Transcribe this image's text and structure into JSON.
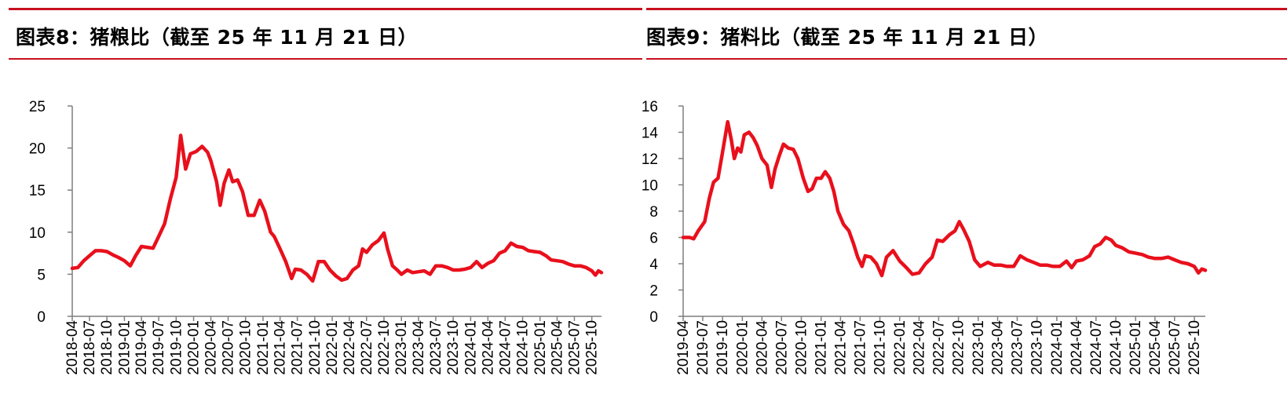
{
  "chart_data": [
    {
      "type": "line",
      "title": "图表8：猪粮比（截至 25 年 11 月 21 日）",
      "xlabel": "",
      "ylabel": "",
      "ylim": [
        0,
        25
      ],
      "yticks": [
        0,
        5,
        10,
        15,
        20,
        25
      ],
      "grid": false,
      "legend": "none",
      "color": "#e8101c",
      "x_range": [
        "2018-04-01",
        "2025-11-21"
      ],
      "xticks": [
        "2018-04",
        "2018-07",
        "2018-10",
        "2019-01",
        "2019-04",
        "2019-07",
        "2019-10",
        "2020-01",
        "2020-04",
        "2020-07",
        "2020-10",
        "2021-01",
        "2021-04",
        "2021-07",
        "2021-10",
        "2022-01",
        "2022-04",
        "2022-07",
        "2022-10",
        "2023-01",
        "2023-04",
        "2023-07",
        "2023-10",
        "2024-01",
        "2024-04",
        "2024-07",
        "2024-10",
        "2025-01",
        "2025-04",
        "2025-07",
        "2025-10"
      ],
      "series": [
        {
          "name": "",
          "points": [
            [
              "2018-04-01",
              5.7
            ],
            [
              "2018-05-01",
              5.8
            ],
            [
              "2018-06-01",
              6.6
            ],
            [
              "2018-07-01",
              7.2
            ],
            [
              "2018-08-01",
              7.8
            ],
            [
              "2018-09-01",
              7.8
            ],
            [
              "2018-10-01",
              7.7
            ],
            [
              "2018-11-01",
              7.3
            ],
            [
              "2018-12-01",
              7.0
            ],
            [
              "2019-01-01",
              6.6
            ],
            [
              "2019-02-01",
              6.0
            ],
            [
              "2019-03-01",
              7.2
            ],
            [
              "2019-04-01",
              8.3
            ],
            [
              "2019-05-01",
              8.2
            ],
            [
              "2019-06-01",
              8.1
            ],
            [
              "2019-07-01",
              9.5
            ],
            [
              "2019-08-01",
              11.0
            ],
            [
              "2019-09-01",
              14.0
            ],
            [
              "2019-10-01",
              16.5
            ],
            [
              "2019-10-25",
              21.5
            ],
            [
              "2019-11-20",
              17.5
            ],
            [
              "2019-12-15",
              19.3
            ],
            [
              "2020-01-15",
              19.6
            ],
            [
              "2020-02-15",
              20.2
            ],
            [
              "2020-03-15",
              19.5
            ],
            [
              "2020-04-01",
              18.5
            ],
            [
              "2020-05-01",
              16.0
            ],
            [
              "2020-05-20",
              13.2
            ],
            [
              "2020-06-10",
              15.8
            ],
            [
              "2020-07-05",
              17.4
            ],
            [
              "2020-07-25",
              16.0
            ],
            [
              "2020-08-20",
              16.2
            ],
            [
              "2020-09-15",
              14.8
            ],
            [
              "2020-10-15",
              12.0
            ],
            [
              "2020-11-15",
              12.0
            ],
            [
              "2020-12-15",
              13.8
            ],
            [
              "2021-01-10",
              12.5
            ],
            [
              "2021-02-10",
              10.0
            ],
            [
              "2021-03-01",
              9.5
            ],
            [
              "2021-04-01",
              8.0
            ],
            [
              "2021-05-01",
              6.5
            ],
            [
              "2021-06-01",
              4.5
            ],
            [
              "2021-06-20",
              5.6
            ],
            [
              "2021-07-20",
              5.5
            ],
            [
              "2021-08-20",
              5.0
            ],
            [
              "2021-09-20",
              4.2
            ],
            [
              "2021-10-20",
              6.5
            ],
            [
              "2021-11-20",
              6.5
            ],
            [
              "2021-12-20",
              5.5
            ],
            [
              "2022-01-20",
              4.8
            ],
            [
              "2022-02-20",
              4.3
            ],
            [
              "2022-03-20",
              4.5
            ],
            [
              "2022-04-20",
              5.5
            ],
            [
              "2022-05-20",
              6.0
            ],
            [
              "2022-06-10",
              8.0
            ],
            [
              "2022-07-01",
              7.6
            ],
            [
              "2022-08-01",
              8.5
            ],
            [
              "2022-09-01",
              9.0
            ],
            [
              "2022-10-01",
              9.9
            ],
            [
              "2022-10-20",
              8.0
            ],
            [
              "2022-11-15",
              6.0
            ],
            [
              "2022-12-10",
              5.5
            ],
            [
              "2023-01-01",
              5.0
            ],
            [
              "2023-02-01",
              5.5
            ],
            [
              "2023-03-01",
              5.2
            ],
            [
              "2023-04-01",
              5.3
            ],
            [
              "2023-05-01",
              5.4
            ],
            [
              "2023-06-01",
              5.0
            ],
            [
              "2023-07-01",
              6.0
            ],
            [
              "2023-08-01",
              6.0
            ],
            [
              "2023-09-01",
              5.8
            ],
            [
              "2023-10-01",
              5.5
            ],
            [
              "2023-11-01",
              5.5
            ],
            [
              "2023-12-01",
              5.6
            ],
            [
              "2024-01-01",
              5.8
            ],
            [
              "2024-02-01",
              6.5
            ],
            [
              "2024-03-01",
              5.8
            ],
            [
              "2024-04-01",
              6.3
            ],
            [
              "2024-05-01",
              6.6
            ],
            [
              "2024-06-01",
              7.5
            ],
            [
              "2024-07-01",
              7.8
            ],
            [
              "2024-08-01",
              8.7
            ],
            [
              "2024-09-01",
              8.3
            ],
            [
              "2024-10-01",
              8.2
            ],
            [
              "2024-11-01",
              7.8
            ],
            [
              "2024-12-01",
              7.7
            ],
            [
              "2025-01-01",
              7.6
            ],
            [
              "2025-02-01",
              7.2
            ],
            [
              "2025-03-01",
              6.7
            ],
            [
              "2025-04-01",
              6.6
            ],
            [
              "2025-05-01",
              6.5
            ],
            [
              "2025-06-01",
              6.2
            ],
            [
              "2025-07-01",
              6.0
            ],
            [
              "2025-08-01",
              6.0
            ],
            [
              "2025-09-01",
              5.8
            ],
            [
              "2025-10-01",
              5.4
            ],
            [
              "2025-10-20",
              4.9
            ],
            [
              "2025-11-05",
              5.4
            ],
            [
              "2025-11-21",
              5.2
            ]
          ]
        }
      ]
    },
    {
      "type": "line",
      "title": "图表9：猪料比（截至 25 年 11 月 21 日）",
      "xlabel": "",
      "ylabel": "",
      "ylim": [
        0,
        16
      ],
      "yticks": [
        0,
        2,
        4,
        6,
        8,
        10,
        12,
        14,
        16
      ],
      "grid": false,
      "legend": "none",
      "color": "#e8101c",
      "x_range": [
        "2019-04-01",
        "2025-11-21"
      ],
      "xticks": [
        "2019-04",
        "2019-07",
        "2019-10",
        "2020-01",
        "2020-04",
        "2020-07",
        "2020-10",
        "2021-01",
        "2021-04",
        "2021-07",
        "2021-10",
        "2022-01",
        "2022-04",
        "2022-07",
        "2022-10",
        "2023-01",
        "2023-04",
        "2023-07",
        "2023-10",
        "2024-01",
        "2024-04",
        "2024-07",
        "2024-10",
        "2025-01",
        "2025-04",
        "2025-07",
        "2025-10"
      ],
      "series": [
        {
          "name": "",
          "points": [
            [
              "2019-04-01",
              6.0
            ],
            [
              "2019-05-01",
              6.0
            ],
            [
              "2019-05-20",
              5.9
            ],
            [
              "2019-06-10",
              6.5
            ],
            [
              "2019-07-10",
              7.2
            ],
            [
              "2019-08-01",
              9.0
            ],
            [
              "2019-08-20",
              10.2
            ],
            [
              "2019-09-10",
              10.5
            ],
            [
              "2019-10-01",
              12.5
            ],
            [
              "2019-10-25",
              14.8
            ],
            [
              "2019-11-10",
              13.5
            ],
            [
              "2019-11-25",
              12.0
            ],
            [
              "2019-12-10",
              12.8
            ],
            [
              "2019-12-25",
              12.5
            ],
            [
              "2020-01-10",
              13.8
            ],
            [
              "2020-02-01",
              14.0
            ],
            [
              "2020-02-20",
              13.6
            ],
            [
              "2020-03-10",
              13.0
            ],
            [
              "2020-04-01",
              12.0
            ],
            [
              "2020-04-25",
              11.5
            ],
            [
              "2020-05-15",
              9.8
            ],
            [
              "2020-06-01",
              11.2
            ],
            [
              "2020-06-20",
              12.2
            ],
            [
              "2020-07-10",
              13.1
            ],
            [
              "2020-08-01",
              12.8
            ],
            [
              "2020-08-25",
              12.7
            ],
            [
              "2020-09-15",
              12.0
            ],
            [
              "2020-10-10",
              10.5
            ],
            [
              "2020-11-01",
              9.5
            ],
            [
              "2020-11-20",
              9.7
            ],
            [
              "2020-12-10",
              10.5
            ],
            [
              "2021-01-01",
              10.5
            ],
            [
              "2021-01-20",
              11.0
            ],
            [
              "2021-02-10",
              10.5
            ],
            [
              "2021-03-01",
              9.5
            ],
            [
              "2021-03-20",
              8.0
            ],
            [
              "2021-04-15",
              7.0
            ],
            [
              "2021-05-10",
              6.5
            ],
            [
              "2021-06-01",
              5.5
            ],
            [
              "2021-06-20",
              4.5
            ],
            [
              "2021-07-10",
              3.8
            ],
            [
              "2021-07-25",
              4.6
            ],
            [
              "2021-08-20",
              4.5
            ],
            [
              "2021-09-15",
              4.0
            ],
            [
              "2021-10-10",
              3.1
            ],
            [
              "2021-11-01",
              4.5
            ],
            [
              "2021-12-01",
              5.0
            ],
            [
              "2022-01-01",
              4.2
            ],
            [
              "2022-02-01",
              3.7
            ],
            [
              "2022-03-01",
              3.2
            ],
            [
              "2022-04-01",
              3.3
            ],
            [
              "2022-05-01",
              4.0
            ],
            [
              "2022-06-01",
              4.5
            ],
            [
              "2022-06-25",
              5.8
            ],
            [
              "2022-07-20",
              5.7
            ],
            [
              "2022-08-20",
              6.2
            ],
            [
              "2022-09-15",
              6.5
            ],
            [
              "2022-10-05",
              7.2
            ],
            [
              "2022-10-25",
              6.6
            ],
            [
              "2022-11-20",
              5.7
            ],
            [
              "2022-12-15",
              4.3
            ],
            [
              "2023-01-10",
              3.8
            ],
            [
              "2023-02-15",
              4.1
            ],
            [
              "2023-03-15",
              3.9
            ],
            [
              "2023-04-15",
              3.9
            ],
            [
              "2023-05-15",
              3.8
            ],
            [
              "2023-06-15",
              3.8
            ],
            [
              "2023-07-15",
              4.6
            ],
            [
              "2023-08-15",
              4.3
            ],
            [
              "2023-09-15",
              4.1
            ],
            [
              "2023-10-15",
              3.9
            ],
            [
              "2023-11-15",
              3.9
            ],
            [
              "2023-12-15",
              3.8
            ],
            [
              "2024-01-15",
              3.8
            ],
            [
              "2024-02-15",
              4.2
            ],
            [
              "2024-03-10",
              3.7
            ],
            [
              "2024-04-01",
              4.2
            ],
            [
              "2024-05-01",
              4.3
            ],
            [
              "2024-06-01",
              4.6
            ],
            [
              "2024-06-25",
              5.3
            ],
            [
              "2024-07-20",
              5.5
            ],
            [
              "2024-08-15",
              6.0
            ],
            [
              "2024-09-10",
              5.8
            ],
            [
              "2024-10-01",
              5.4
            ],
            [
              "2024-11-01",
              5.2
            ],
            [
              "2024-12-01",
              4.9
            ],
            [
              "2025-01-01",
              4.8
            ],
            [
              "2025-02-01",
              4.7
            ],
            [
              "2025-03-01",
              4.5
            ],
            [
              "2025-04-01",
              4.4
            ],
            [
              "2025-05-01",
              4.4
            ],
            [
              "2025-06-01",
              4.5
            ],
            [
              "2025-07-01",
              4.3
            ],
            [
              "2025-08-01",
              4.1
            ],
            [
              "2025-09-01",
              4.0
            ],
            [
              "2025-10-01",
              3.8
            ],
            [
              "2025-10-20",
              3.3
            ],
            [
              "2025-11-05",
              3.6
            ],
            [
              "2025-11-21",
              3.5
            ]
          ]
        }
      ]
    }
  ]
}
